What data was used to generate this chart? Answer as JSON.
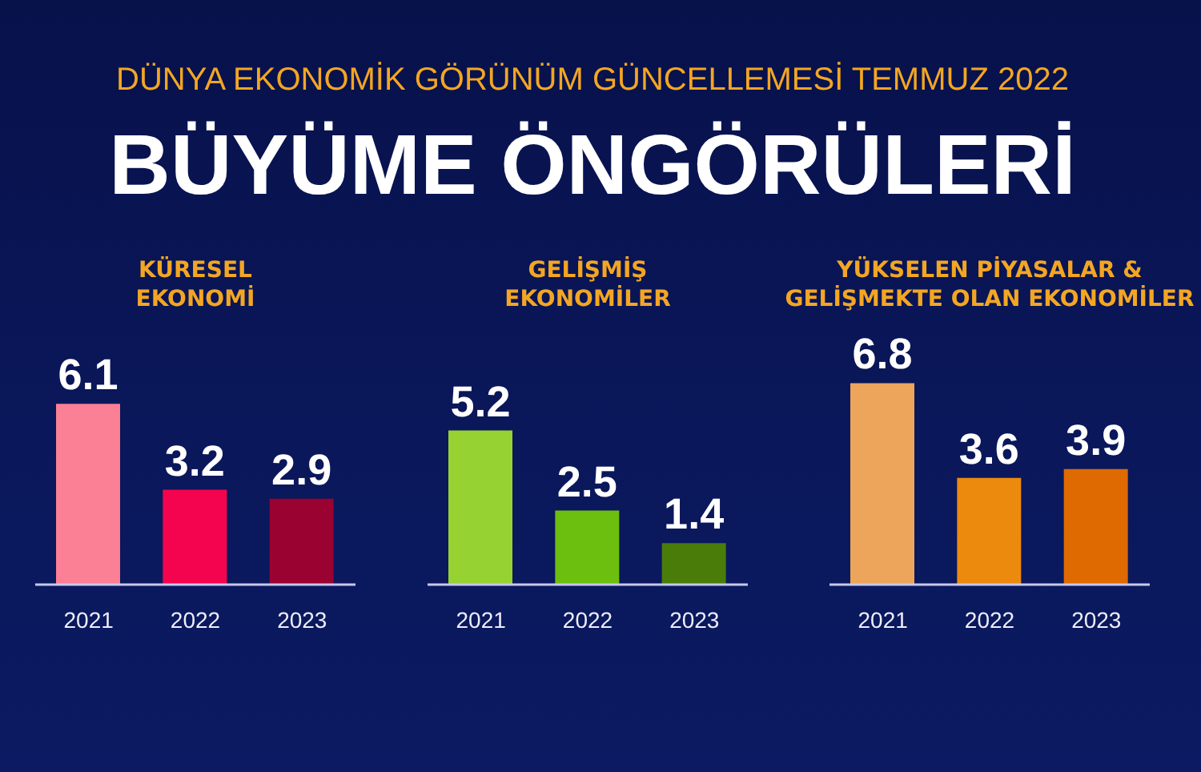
{
  "chart_data": [
    {
      "type": "other",
      "title": "BÜYÜME ÖNGÖRÜLERİ",
      "subtitle": "DÜNYA EKONOMİK GÖRÜNÜM GÜNCELLEMESİ TEMMUZ 2022"
    },
    {
      "type": "bar",
      "title": "KÜRESEL EKONOMİ",
      "categories": [
        "2021",
        "2022",
        "2023"
      ],
      "values": [
        6.1,
        3.2,
        2.9
      ],
      "colors": [
        "#fb7f95",
        "#f4044f",
        "#9a0232"
      ],
      "data_labels": true
    },
    {
      "type": "bar",
      "title": "GELİŞMİŞ EKONOMİLER",
      "categories": [
        "2021",
        "2022",
        "2023"
      ],
      "values": [
        5.2,
        2.5,
        1.4
      ],
      "colors": [
        "#96d232",
        "#6cbf0e",
        "#4a7c0a"
      ],
      "data_labels": true
    },
    {
      "type": "bar",
      "title": "YÜKSELEN PİYASALAR & GELİŞMEKTE OLAN EKONOMİLER",
      "categories": [
        "2021",
        "2022",
        "2023"
      ],
      "values": [
        6.8,
        3.6,
        3.9
      ],
      "colors": [
        "#eda55c",
        "#ec8a0e",
        "#df6a02"
      ],
      "data_labels": true
    }
  ]
}
